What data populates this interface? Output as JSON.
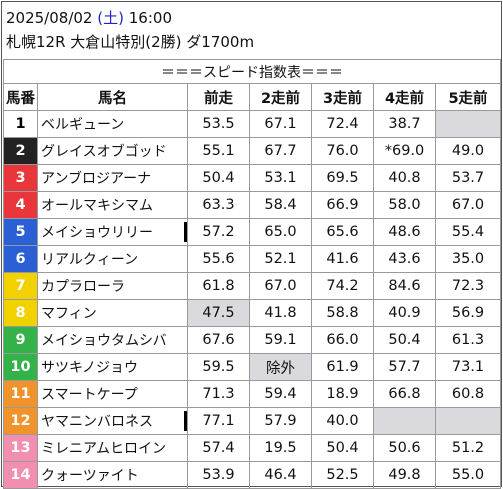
{
  "header": {
    "date": "2025/08/02",
    "weekday_open": "(",
    "weekday": "土",
    "weekday_close": ")",
    "time": "16:00",
    "race": "札幌12R 大倉山特別(2勝) ダ1700m"
  },
  "table": {
    "title": "＝＝＝スピード指数表＝＝＝",
    "columns": [
      "馬番",
      "馬名",
      "前走",
      "2走前",
      "3走前",
      "4走前",
      "5走前"
    ],
    "rows": [
      {
        "num": "1",
        "name": "ベルギューン",
        "v": [
          "53.5",
          "67.1",
          "72.4",
          "38.7",
          ""
        ],
        "color": "#ffffff",
        "text": "#000000",
        "bar": false,
        "gray": [
          false,
          false,
          false,
          false,
          true
        ]
      },
      {
        "num": "2",
        "name": "グレイスオブゴッド",
        "v": [
          "55.1",
          "67.7",
          "76.0",
          "*69.0",
          "49.0"
        ],
        "color": "#222222",
        "text": "#ffffff",
        "bar": false,
        "gray": [
          false,
          false,
          false,
          false,
          false
        ]
      },
      {
        "num": "3",
        "name": "アンブロジアーナ",
        "v": [
          "50.4",
          "53.1",
          "69.5",
          "40.8",
          "53.7"
        ],
        "color": "#e8363a",
        "text": "#ffffff",
        "bar": false,
        "gray": [
          false,
          false,
          false,
          false,
          false
        ]
      },
      {
        "num": "4",
        "name": "オールマキシマム",
        "v": [
          "63.3",
          "58.4",
          "66.9",
          "58.0",
          "67.0"
        ],
        "color": "#e8363a",
        "text": "#ffffff",
        "bar": false,
        "gray": [
          false,
          false,
          false,
          false,
          false
        ]
      },
      {
        "num": "5",
        "name": "メイショウリリー",
        "v": [
          "57.2",
          "65.0",
          "65.6",
          "48.6",
          "55.4"
        ],
        "color": "#2a5fd6",
        "text": "#ffffff",
        "bar": true,
        "gray": [
          false,
          false,
          false,
          false,
          false
        ]
      },
      {
        "num": "6",
        "name": "リアルクィーン",
        "v": [
          "55.6",
          "52.1",
          "41.6",
          "43.6",
          "35.0"
        ],
        "color": "#2a5fd6",
        "text": "#ffffff",
        "bar": false,
        "gray": [
          false,
          false,
          false,
          false,
          false
        ]
      },
      {
        "num": "7",
        "name": "カプラローラ",
        "v": [
          "61.8",
          "67.0",
          "74.2",
          "84.6",
          "72.3"
        ],
        "color": "#f2d100",
        "text": "#ffffff",
        "bar": false,
        "gray": [
          false,
          false,
          false,
          false,
          false
        ]
      },
      {
        "num": "8",
        "name": "マフィン",
        "v": [
          "47.5",
          "41.8",
          "58.8",
          "40.9",
          "56.9"
        ],
        "color": "#f2d100",
        "text": "#ffffff",
        "bar": false,
        "gray": [
          true,
          false,
          false,
          false,
          false
        ]
      },
      {
        "num": "9",
        "name": "メイショウタムシバ",
        "v": [
          "67.6",
          "59.1",
          "66.0",
          "50.4",
          "61.3"
        ],
        "color": "#33b24a",
        "text": "#ffffff",
        "bar": false,
        "gray": [
          false,
          false,
          false,
          false,
          false
        ]
      },
      {
        "num": "10",
        "name": "サツキノジョウ",
        "v": [
          "59.5",
          "除外",
          "61.9",
          "57.7",
          "73.1"
        ],
        "color": "#33b24a",
        "text": "#ffffff",
        "bar": false,
        "gray": [
          false,
          true,
          false,
          false,
          false
        ]
      },
      {
        "num": "11",
        "name": "スマートケープ",
        "v": [
          "71.3",
          "59.4",
          "18.9",
          "66.8",
          "60.8"
        ],
        "color": "#f0932b",
        "text": "#ffffff",
        "bar": false,
        "gray": [
          false,
          false,
          false,
          false,
          false
        ]
      },
      {
        "num": "12",
        "name": "ヤマニンバロネス",
        "v": [
          "77.1",
          "57.9",
          "40.0",
          "",
          ""
        ],
        "color": "#f0932b",
        "text": "#ffffff",
        "bar": true,
        "gray": [
          false,
          false,
          false,
          true,
          true
        ]
      },
      {
        "num": "13",
        "name": "ミレニアムヒロイン",
        "v": [
          "57.4",
          "19.5",
          "50.4",
          "50.6",
          "51.2"
        ],
        "color": "#f28fb1",
        "text": "#ffffff",
        "bar": false,
        "gray": [
          false,
          false,
          false,
          false,
          false
        ]
      },
      {
        "num": "14",
        "name": "クォーツァイト",
        "v": [
          "53.9",
          "46.4",
          "52.5",
          "49.8",
          "55.0"
        ],
        "color": "#f28fb1",
        "text": "#ffffff",
        "bar": false,
        "gray": [
          false,
          false,
          false,
          false,
          false
        ]
      }
    ]
  }
}
